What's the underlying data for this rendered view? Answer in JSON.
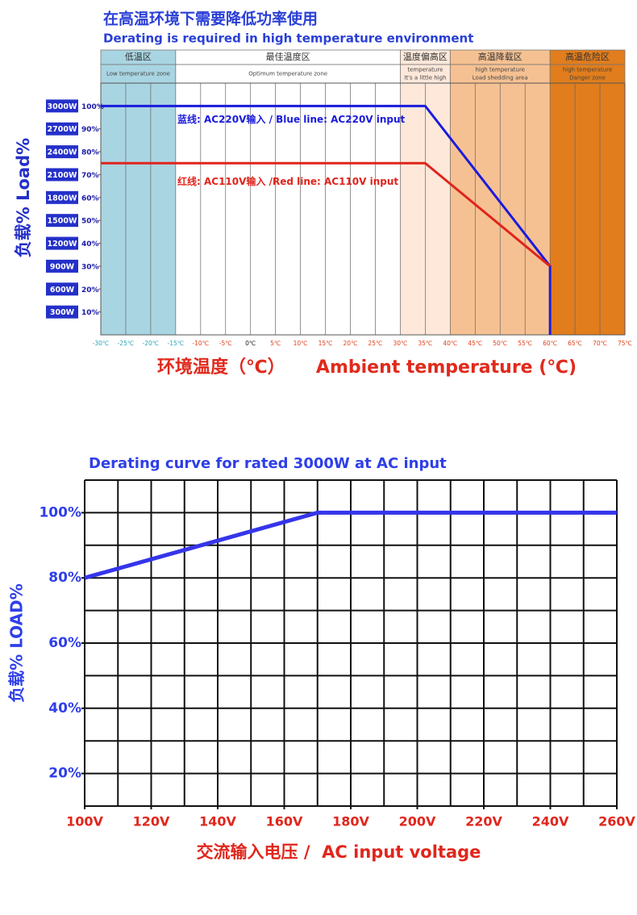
{
  "chart_data": [
    {
      "type": "line",
      "title": "在高温环境下需要降低功率使用",
      "subtitle": "Derating is required in high temperature environment",
      "ylabel": "负载%  Load%",
      "xlabel": "环境温度（℃）     Ambient temperature (℃)",
      "xlim": [
        -30,
        75
      ],
      "ylim": [
        0,
        110
      ],
      "xticks": [
        {
          "value": -30,
          "label": "-30℃"
        },
        {
          "value": -25,
          "label": "-25℃"
        },
        {
          "value": -20,
          "label": "-20℃"
        },
        {
          "value": -15,
          "label": "-15℃"
        },
        {
          "value": -10,
          "label": "-10℃"
        },
        {
          "value": -5,
          "label": "-5℃"
        },
        {
          "value": 0,
          "label": "0℃"
        },
        {
          "value": 5,
          "label": "5℃"
        },
        {
          "value": 10,
          "label": "10℃"
        },
        {
          "value": 15,
          "label": "15℃"
        },
        {
          "value": 20,
          "label": "20℃"
        },
        {
          "value": 25,
          "label": "25℃"
        },
        {
          "value": 30,
          "label": "30℃"
        },
        {
          "value": 35,
          "label": "35℃"
        },
        {
          "value": 40,
          "label": "40℃"
        },
        {
          "value": 45,
          "label": "45℃"
        },
        {
          "value": 50,
          "label": "50℃"
        },
        {
          "value": 55,
          "label": "55℃"
        },
        {
          "value": 60,
          "label": "60℃"
        },
        {
          "value": 65,
          "label": "65℃"
        },
        {
          "value": 70,
          "label": "70℃"
        },
        {
          "value": 75,
          "label": "75℃"
        }
      ],
      "yticks": [
        {
          "value": 100,
          "label": "100%"
        },
        {
          "value": 90,
          "label": "90%"
        },
        {
          "value": 80,
          "label": "80%"
        },
        {
          "value": 70,
          "label": "70%"
        },
        {
          "value": 60,
          "label": "60%"
        },
        {
          "value": 50,
          "label": "50%"
        },
        {
          "value": 40,
          "label": "40%"
        },
        {
          "value": 30,
          "label": "30%"
        },
        {
          "value": 20,
          "label": "20%"
        },
        {
          "value": 10,
          "label": "10%"
        }
      ],
      "ytick_watts": [
        "3000W",
        "2700W",
        "2400W",
        "2100W",
        "1800W",
        "1500W",
        "1200W",
        "900W",
        "600W",
        "300W"
      ],
      "zones": [
        {
          "name": "低温区",
          "note": [
            "Low temperature zone"
          ],
          "from": -30,
          "to": -15,
          "color": "#a9d5e2"
        },
        {
          "name": "最佳温度区",
          "note": [
            "Optimum temperature zone"
          ],
          "from": -15,
          "to": 30,
          "color": "#ffffff"
        },
        {
          "name": "温度偏高区",
          "note": [
            "temperature",
            "It's a little high"
          ],
          "from": 30,
          "to": 40,
          "color": "#fde8da"
        },
        {
          "name": "高温降载区",
          "note": [
            "high temperature",
            "Load shedding area"
          ],
          "from": 40,
          "to": 60,
          "color": "#f6c192"
        },
        {
          "name": "高温危险区",
          "note": [
            "high temperature",
            "Danger zone"
          ],
          "from": 60,
          "to": 75,
          "color": "#e17d1c"
        }
      ],
      "series": [
        {
          "name": "蓝线: AC220V输入 / Blue line: AC220V input",
          "color": "#1b1bdc",
          "x": [
            -30,
            35,
            60,
            60
          ],
          "values": [
            100,
            100,
            30,
            0
          ]
        },
        {
          "name": "红线: AC110V输入 /Red line: AC110V input",
          "color": "#e0241c",
          "x": [
            -30,
            35,
            60
          ],
          "values": [
            75,
            75,
            30
          ]
        }
      ]
    },
    {
      "type": "line",
      "title": "Derating curve for rated 3000W at AC input",
      "ylabel": "负载%  LOAD%",
      "xlabel": "交流输入电压 /  AC input voltage",
      "xlim": [
        100,
        260
      ],
      "ylim": [
        10,
        110
      ],
      "xticks": [
        {
          "value": 100,
          "label": "100V"
        },
        {
          "value": 120,
          "label": "120V"
        },
        {
          "value": 140,
          "label": "140V"
        },
        {
          "value": 160,
          "label": "160V"
        },
        {
          "value": 180,
          "label": "180V"
        },
        {
          "value": 200,
          "label": "200V"
        },
        {
          "value": 220,
          "label": "220V"
        },
        {
          "value": 240,
          "label": "240V"
        },
        {
          "value": 260,
          "label": "260V"
        }
      ],
      "yticks": [
        {
          "value": 100,
          "label": "100%"
        },
        {
          "value": 80,
          "label": "80%"
        },
        {
          "value": 60,
          "label": "60%"
        },
        {
          "value": 40,
          "label": "40%"
        },
        {
          "value": 20,
          "label": "20%"
        }
      ],
      "xgrid": [
        100,
        110,
        120,
        130,
        140,
        150,
        160,
        170,
        180,
        190,
        200,
        210,
        220,
        230,
        240,
        250,
        260
      ],
      "ygrid": [
        10,
        20,
        30,
        40,
        50,
        60,
        70,
        80,
        90,
        100,
        110
      ],
      "series": [
        {
          "color": "#3535ea",
          "x": [
            100,
            170,
            260
          ],
          "values": [
            80,
            100,
            100
          ]
        }
      ]
    }
  ]
}
